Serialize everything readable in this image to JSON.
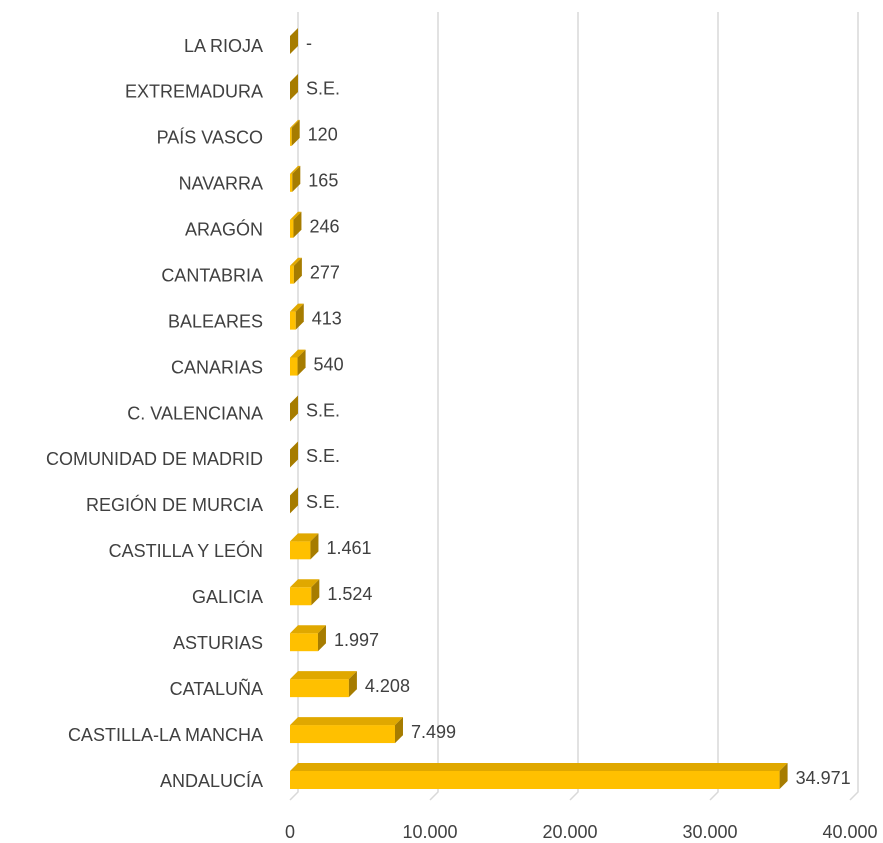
{
  "chart_data": {
    "type": "bar",
    "orientation": "horizontal",
    "categories": [
      "LA RIOJA",
      "EXTREMADURA",
      "PAÍS VASCO",
      "NAVARRA",
      "ARAGÓN",
      "CANTABRIA",
      "BALEARES",
      "CANARIAS",
      "C. VALENCIANA",
      "COMUNIDAD DE MADRID",
      "REGIÓN DE MURCIA",
      "CASTILLA Y LEÓN",
      "GALICIA",
      "ASTURIAS",
      "CATALUÑA",
      "CASTILLA-LA MANCHA",
      "ANDALUCÍA"
    ],
    "values": [
      null,
      null,
      120,
      165,
      246,
      277,
      413,
      540,
      null,
      null,
      null,
      1461,
      1524,
      1997,
      4208,
      7499,
      34971
    ],
    "value_labels": [
      "-",
      "S.E.",
      "120",
      "165",
      "246",
      "277",
      "413",
      "540",
      "S.E.",
      "S.E.",
      "S.E.",
      "1.461",
      "1.524",
      "1.997",
      "4.208",
      "7.499",
      "34.971"
    ],
    "color": "#ffc000",
    "xlim": [
      0,
      40000
    ],
    "xticks": [
      0,
      {
        "value": 10000,
        "label": "10.000"
      },
      {
        "value": 20000,
        "label": "20.000"
      },
      {
        "value": 30000,
        "label": "30.000"
      },
      {
        "value": 40000,
        "label": "40.000"
      }
    ],
    "grid": true
  }
}
